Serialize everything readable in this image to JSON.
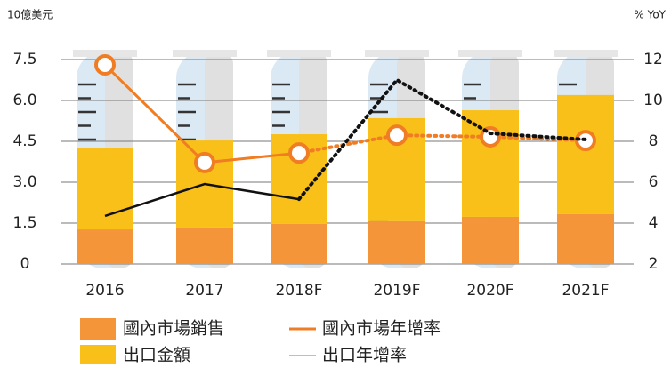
{
  "chart_data": {
    "type": "bar-line",
    "left_axis_label": "10億美元",
    "right_axis_label": "% YoY",
    "categories": [
      "2016",
      "2017",
      "2018F",
      "2019F",
      "2020F",
      "2021F"
    ],
    "series": [
      {
        "name": "國內市場銷售",
        "color": "#f5953a",
        "values": [
          1.27,
          1.34,
          1.47,
          1.57,
          1.73,
          1.83
        ]
      },
      {
        "name": "出口金額",
        "color": "#f9c01a",
        "values": [
          2.97,
          3.19,
          3.29,
          3.78,
          3.91,
          4.37
        ]
      },
      {
        "name": "國內市場年增率",
        "color": "#f07d23",
        "axis": "y2",
        "values": [
          11.74,
          6.96,
          7.43,
          8.3,
          8.22,
          8.04
        ]
      },
      {
        "name": "出口年增率",
        "color": "#111111",
        "axis": "y2",
        "values": [
          4.35,
          5.91,
          5.17,
          11.0,
          8.39,
          8.09
        ]
      }
    ],
    "dashed_from_index": 2,
    "ylim": [
      0,
      7.5
    ],
    "yticks": [
      0,
      1.5,
      {
        "value": 3,
        "label": "3.0"
      },
      4.5,
      {
        "value": 6,
        "label": "6.0"
      },
      7.5
    ],
    "y2lim": [
      2,
      12
    ],
    "y2ticks": [
      2,
      4,
      6,
      8,
      10,
      12
    ],
    "grid": true
  }
}
